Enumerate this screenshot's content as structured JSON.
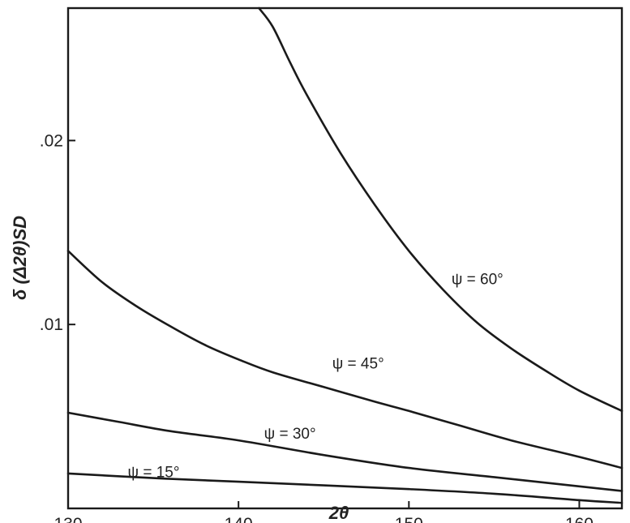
{
  "chart_data": {
    "type": "line",
    "title": "",
    "xlabel": "2θ",
    "ylabel": "δ (Δ2θ)SD",
    "xlim": [
      130,
      162.5
    ],
    "ylim": [
      0,
      0.0272
    ],
    "x_ticks": [
      130,
      140,
      150,
      160
    ],
    "x_tick_labels": [
      "130",
      "140",
      "150",
      "160"
    ],
    "y_ticks": [
      0.01,
      0.02
    ],
    "y_tick_labels": [
      ".01",
      ".02"
    ],
    "grid": false,
    "legend": "none",
    "series": [
      {
        "name": "ψ = 15°",
        "label_x": 133.5,
        "label_y": 0.0017,
        "points": [
          [
            130,
            0.0019
          ],
          [
            135,
            0.00165
          ],
          [
            140,
            0.00145
          ],
          [
            145,
            0.00125
          ],
          [
            150,
            0.00105
          ],
          [
            155,
            0.0008
          ],
          [
            160,
            0.00045
          ],
          [
            162.5,
            0.0003
          ]
        ]
      },
      {
        "name": "ψ = 30°",
        "label_x": 141.5,
        "label_y": 0.0038,
        "points": [
          [
            130,
            0.0052
          ],
          [
            133,
            0.0047
          ],
          [
            136,
            0.0042
          ],
          [
            140,
            0.0037
          ],
          [
            145,
            0.0029
          ],
          [
            150,
            0.0022
          ],
          [
            155,
            0.0017
          ],
          [
            160,
            0.0012
          ],
          [
            162.5,
            0.00095
          ]
        ]
      },
      {
        "name": "ψ = 45°",
        "label_x": 145.5,
        "label_y": 0.0076,
        "points": [
          [
            130,
            0.014
          ],
          [
            132,
            0.0123
          ],
          [
            134,
            0.011
          ],
          [
            136,
            0.0099
          ],
          [
            138,
            0.0089
          ],
          [
            140,
            0.0081
          ],
          [
            142,
            0.0074
          ],
          [
            145,
            0.0066
          ],
          [
            148,
            0.0058
          ],
          [
            150,
            0.0053
          ],
          [
            153,
            0.0045
          ],
          [
            156,
            0.0037
          ],
          [
            160,
            0.0028
          ],
          [
            162.5,
            0.0022
          ]
        ]
      },
      {
        "name": "ψ = 60°",
        "label_x": 152.5,
        "label_y": 0.0122,
        "points": [
          [
            141.2,
            0.0272
          ],
          [
            142,
            0.0262
          ],
          [
            143,
            0.0243
          ],
          [
            144,
            0.0225
          ],
          [
            146,
            0.0193
          ],
          [
            148,
            0.0165
          ],
          [
            150,
            0.014
          ],
          [
            152,
            0.0119
          ],
          [
            154,
            0.0101
          ],
          [
            156,
            0.0087
          ],
          [
            158,
            0.0075
          ],
          [
            160,
            0.0064
          ],
          [
            162.5,
            0.0053
          ]
        ]
      }
    ]
  }
}
